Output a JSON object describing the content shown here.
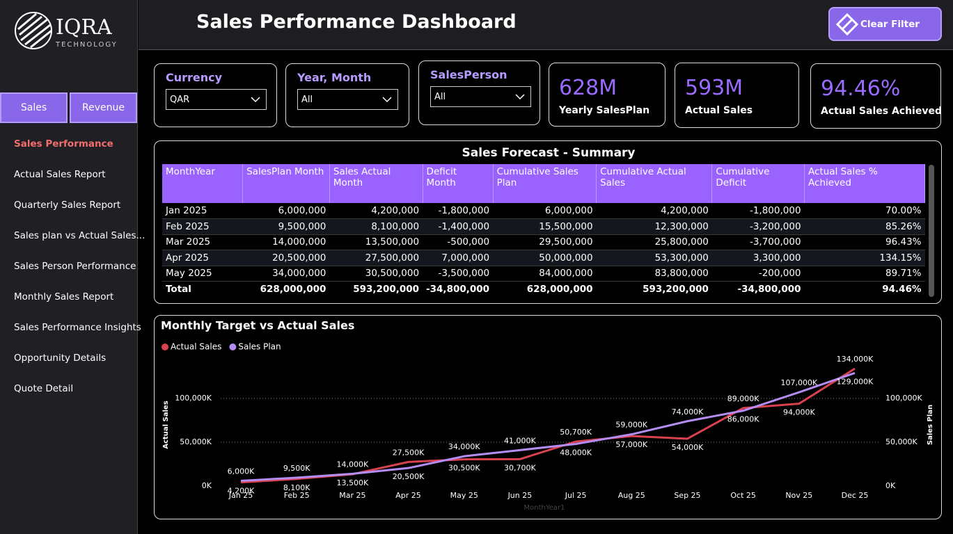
{
  "sidebar": {
    "logo": "IQRA",
    "logo_sub": "TECHNOLOGY",
    "tabs": [
      "Sales",
      "Revenue"
    ],
    "nav": [
      "Sales Performance",
      "Actual Sales Report",
      "Quarterly Sales Report",
      "Sales plan vs Actual Sales...",
      "Sales Person Performance",
      "Monthly Sales Report",
      "Sales Performance Insights",
      "Opportunity Details",
      "Quote Detail"
    ]
  },
  "header": {
    "title": "Sales Performance Dashboard",
    "button": "Clear Filter"
  },
  "filters": [
    {
      "label": "Currency",
      "value": "QAR"
    },
    {
      "label": "Year, Month",
      "value": "All"
    },
    {
      "label": "SalesPerson",
      "value": "All"
    }
  ],
  "cards": [
    {
      "value": "628M",
      "label": "Yearly SalesPlan"
    },
    {
      "value": "593M",
      "label": "Actual Sales"
    },
    {
      "value": "94.46%",
      "label": "Actual Sales Achieved"
    }
  ],
  "table": {
    "title": "Sales Forecast - Summary",
    "columns": [
      "MonthYear",
      "SalesPlan Month",
      "Sales Actual Month",
      "Deficit Month",
      "Cumulative Sales Plan",
      "Cumulative Actual Sales",
      "Cumulative Deficit",
      "Actual Sales % Achieved"
    ],
    "rows": [
      [
        "Jan 2025",
        "6,000,000",
        "4,200,000",
        "-1,800,000",
        "6,000,000",
        "4,200,000",
        "-1,800,000",
        "70.00%"
      ],
      [
        "Feb 2025",
        "9,500,000",
        "8,100,000",
        "-1,400,000",
        "15,500,000",
        "12,300,000",
        "-3,200,000",
        "85.26%"
      ],
      [
        "Mar 2025",
        "14,000,000",
        "13,500,000",
        "-500,000",
        "29,500,000",
        "25,800,000",
        "-3,700,000",
        "96.43%"
      ],
      [
        "Apr 2025",
        "20,500,000",
        "27,500,000",
        "7,000,000",
        "50,000,000",
        "53,300,000",
        "3,300,000",
        "134.15%"
      ],
      [
        "May 2025",
        "34,000,000",
        "30,500,000",
        "-3,500,000",
        "84,000,000",
        "83,800,000",
        "-200,000",
        "89.71%"
      ]
    ],
    "total": [
      "Total",
      "628,000,000",
      "593,200,000",
      "-34,800,000",
      "628,000,000",
      "593,200,000",
      "-34,800,000",
      "94.46%"
    ]
  },
  "chart_data": {
    "type": "line",
    "title": "Monthly Target vs Actual Sales",
    "x_label": "MonthYear1",
    "y_label": "Actual Sales",
    "y2_label": "Sales Plan",
    "categories": [
      "Jan 25",
      "Feb 25",
      "Mar 25",
      "Apr 25",
      "May 25",
      "Jun 25",
      "Jul 25",
      "Aug 25",
      "Sep 25",
      "Oct 25",
      "Nov 25",
      "Dec 25"
    ],
    "series": [
      {
        "name": "Actual Sales",
        "color": "#d8424f",
        "values": [
          4200,
          8100,
          13500,
          27500,
          30500,
          30700,
          50700,
          57000,
          54000,
          89000,
          94000,
          134000
        ],
        "value_labels": [
          "4,200K",
          "8,100K",
          "13,500K",
          "27,500K",
          "30,500K",
          "30,700K",
          "50,700K",
          "57,000K",
          "54,000K",
          "89,000K",
          "94,000K",
          "134,000K"
        ]
      },
      {
        "name": "Sales Plan",
        "color": "#b58cf2",
        "axis": "y2",
        "values": [
          6000,
          9500,
          14000,
          20500,
          34000,
          41000,
          48000,
          59000,
          74000,
          86000,
          107000,
          129000
        ],
        "value_labels": [
          "6,000K",
          "9,500K",
          "14,000K",
          "20,500K",
          "34,000K",
          "41,000K",
          "48,000K",
          "59,000K",
          "74,000K",
          "86,000K",
          "107,000K",
          "129,000K"
        ]
      }
    ],
    "ylim": [
      0,
      140000
    ],
    "yticks": [
      {
        "value": 0,
        "label": "0K"
      },
      {
        "value": 50000,
        "label": "50,000K"
      },
      {
        "value": 100000,
        "label": "100,000K"
      }
    ],
    "y2lim": [
      0,
      140000
    ],
    "y2ticks": [
      {
        "value": 0,
        "label": "0K"
      },
      {
        "value": 50000,
        "label": "50,000K"
      },
      {
        "value": 100000,
        "label": "100,000K"
      }
    ],
    "grid": true,
    "legend": "top-left"
  }
}
